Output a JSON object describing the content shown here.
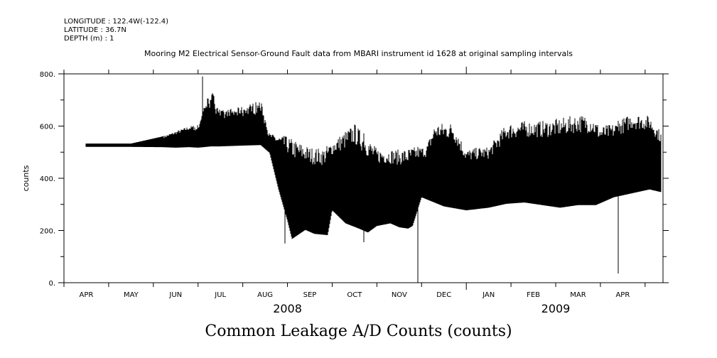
{
  "header": {
    "longitude": "LONGITUDE : 122.4W(-122.4)",
    "latitude": "LATITUDE : 36.7N",
    "depth": "DEPTH (m) : 1"
  },
  "chart_data": {
    "type": "line",
    "title": "Mooring M2 Electrical Sensor-Ground Fault data from MBARI instrument id 1628 at original sampling intervals",
    "xlabel": "Common Leakage A/D Counts (counts)",
    "ylabel": "counts",
    "ylim": [
      0,
      800
    ],
    "yticks": [
      0,
      200,
      400,
      600,
      800
    ],
    "ytick_labels": [
      "0.",
      "200.",
      "400.",
      "600.",
      "800."
    ],
    "x_unit": "months since 2008-04-01",
    "xlim": [
      -0.5,
      12.9
    ],
    "month_labels": [
      "APR",
      "MAY",
      "JUN",
      "JUL",
      "AUG",
      "SEP",
      "OCT",
      "NOV",
      "DEC",
      "JAN",
      "FEB",
      "MAR",
      "APR"
    ],
    "year_labels": [
      {
        "label": "2008",
        "at": 4.5
      },
      {
        "label": "2009",
        "at": 10.5
      }
    ],
    "series": [
      {
        "name": "Common Leakage A/D Counts",
        "envelope_max": [
          [
            0,
            533
          ],
          [
            1,
            533
          ],
          [
            1.7,
            560
          ],
          [
            2.0,
            580
          ],
          [
            2.3,
            600
          ],
          [
            2.5,
            605
          ],
          [
            2.65,
            690
          ],
          [
            2.8,
            740
          ],
          [
            3.0,
            660
          ],
          [
            3.5,
            675
          ],
          [
            3.9,
            700
          ],
          [
            4.1,
            570
          ],
          [
            4.5,
            560
          ],
          [
            5.0,
            520
          ],
          [
            5.3,
            515
          ],
          [
            6.0,
            610
          ],
          [
            6.5,
            515
          ],
          [
            7.0,
            510
          ],
          [
            7.2,
            515
          ],
          [
            7.3,
            520
          ],
          [
            7.6,
            520
          ],
          [
            7.8,
            610
          ],
          [
            8.2,
            615
          ],
          [
            8.5,
            510
          ],
          [
            8.8,
            520
          ],
          [
            9.0,
            520
          ],
          [
            9.4,
            610
          ],
          [
            9.8,
            620
          ],
          [
            10.2,
            620
          ],
          [
            10.6,
            630
          ],
          [
            11.0,
            645
          ],
          [
            11.3,
            640
          ],
          [
            11.5,
            600
          ],
          [
            11.8,
            610
          ],
          [
            12.2,
            650
          ],
          [
            12.6,
            640
          ],
          [
            12.85,
            580
          ]
        ],
        "envelope_min": [
          [
            0,
            523
          ],
          [
            1,
            523
          ],
          [
            1.7,
            522
          ],
          [
            2.0,
            520
          ],
          [
            2.3,
            522
          ],
          [
            2.5,
            520
          ],
          [
            2.8,
            525
          ],
          [
            3.0,
            525
          ],
          [
            3.5,
            528
          ],
          [
            3.9,
            530
          ],
          [
            4.1,
            500
          ],
          [
            4.3,
            360
          ],
          [
            4.5,
            240
          ],
          [
            4.6,
            170
          ],
          [
            4.9,
            205
          ],
          [
            5.1,
            190
          ],
          [
            5.4,
            185
          ],
          [
            5.5,
            280
          ],
          [
            5.8,
            230
          ],
          [
            6.1,
            210
          ],
          [
            6.3,
            195
          ],
          [
            6.5,
            220
          ],
          [
            6.8,
            230
          ],
          [
            7.0,
            215
          ],
          [
            7.2,
            210
          ],
          [
            7.3,
            220
          ],
          [
            7.5,
            330
          ],
          [
            8.0,
            295
          ],
          [
            8.5,
            280
          ],
          [
            9.0,
            290
          ],
          [
            9.4,
            305
          ],
          [
            9.8,
            310
          ],
          [
            10.2,
            300
          ],
          [
            10.6,
            290
          ],
          [
            11.0,
            300
          ],
          [
            11.4,
            300
          ],
          [
            11.8,
            330
          ],
          [
            12.2,
            345
          ],
          [
            12.6,
            360
          ],
          [
            12.85,
            350
          ]
        ],
        "spikes": [
          {
            "x": 7.42,
            "min": 0
          },
          {
            "x": 11.9,
            "min": 35
          },
          {
            "x": 4.45,
            "min": 150
          },
          {
            "x": 6.2,
            "min": 155
          },
          {
            "x": 2.6,
            "max": 790
          }
        ]
      }
    ]
  }
}
